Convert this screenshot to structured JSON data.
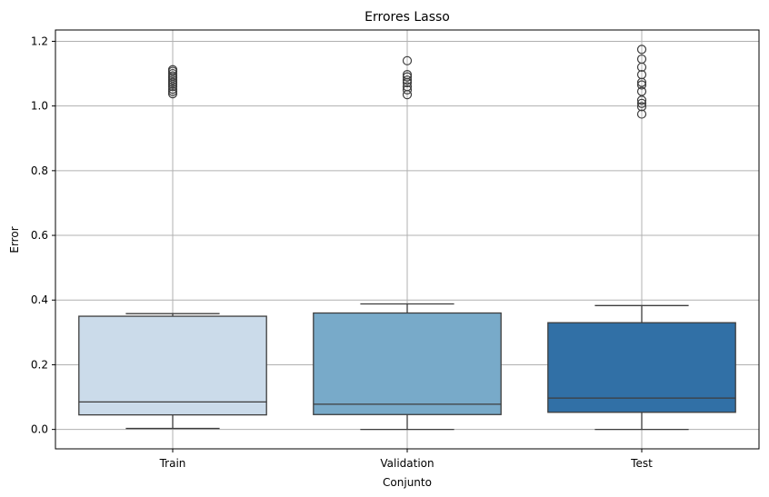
{
  "chart_data": {
    "type": "boxplot",
    "title": "Errores Lasso",
    "xlabel": "Conjunto",
    "ylabel": "Error",
    "ylim": [
      -0.06,
      1.235
    ],
    "yticks": [
      0.0,
      0.2,
      0.4,
      0.6,
      0.8,
      1.0,
      1.2
    ],
    "ytick_labels": [
      "0.0",
      "0.2",
      "0.4",
      "0.6",
      "0.8",
      "1.0",
      "1.2"
    ],
    "grid": true,
    "categories": [
      "Train",
      "Validation",
      "Test"
    ],
    "boxes": [
      {
        "name": "Train",
        "color": "#cbdbea",
        "whisker_low": 0.003,
        "q1": 0.045,
        "median": 0.085,
        "q3": 0.35,
        "whisker_high": 0.358,
        "outliers": [
          1.038,
          1.045,
          1.052,
          1.06,
          1.067,
          1.073,
          1.08,
          1.087,
          1.093,
          1.1,
          1.107,
          1.112
        ]
      },
      {
        "name": "Validation",
        "color": "#78aac9",
        "whisker_low": 0.0,
        "q1": 0.046,
        "median": 0.078,
        "q3": 0.36,
        "whisker_high": 0.388,
        "outliers": [
          1.035,
          1.05,
          1.06,
          1.072,
          1.08,
          1.09,
          1.097,
          1.14
        ]
      },
      {
        "name": "Test",
        "color": "#3170a6",
        "whisker_low": 0.0,
        "q1": 0.053,
        "median": 0.097,
        "q3": 0.33,
        "whisker_high": 0.383,
        "outliers": [
          0.975,
          0.998,
          1.008,
          1.018,
          1.045,
          1.065,
          1.073,
          1.097,
          1.12,
          1.145,
          1.175
        ]
      }
    ]
  }
}
